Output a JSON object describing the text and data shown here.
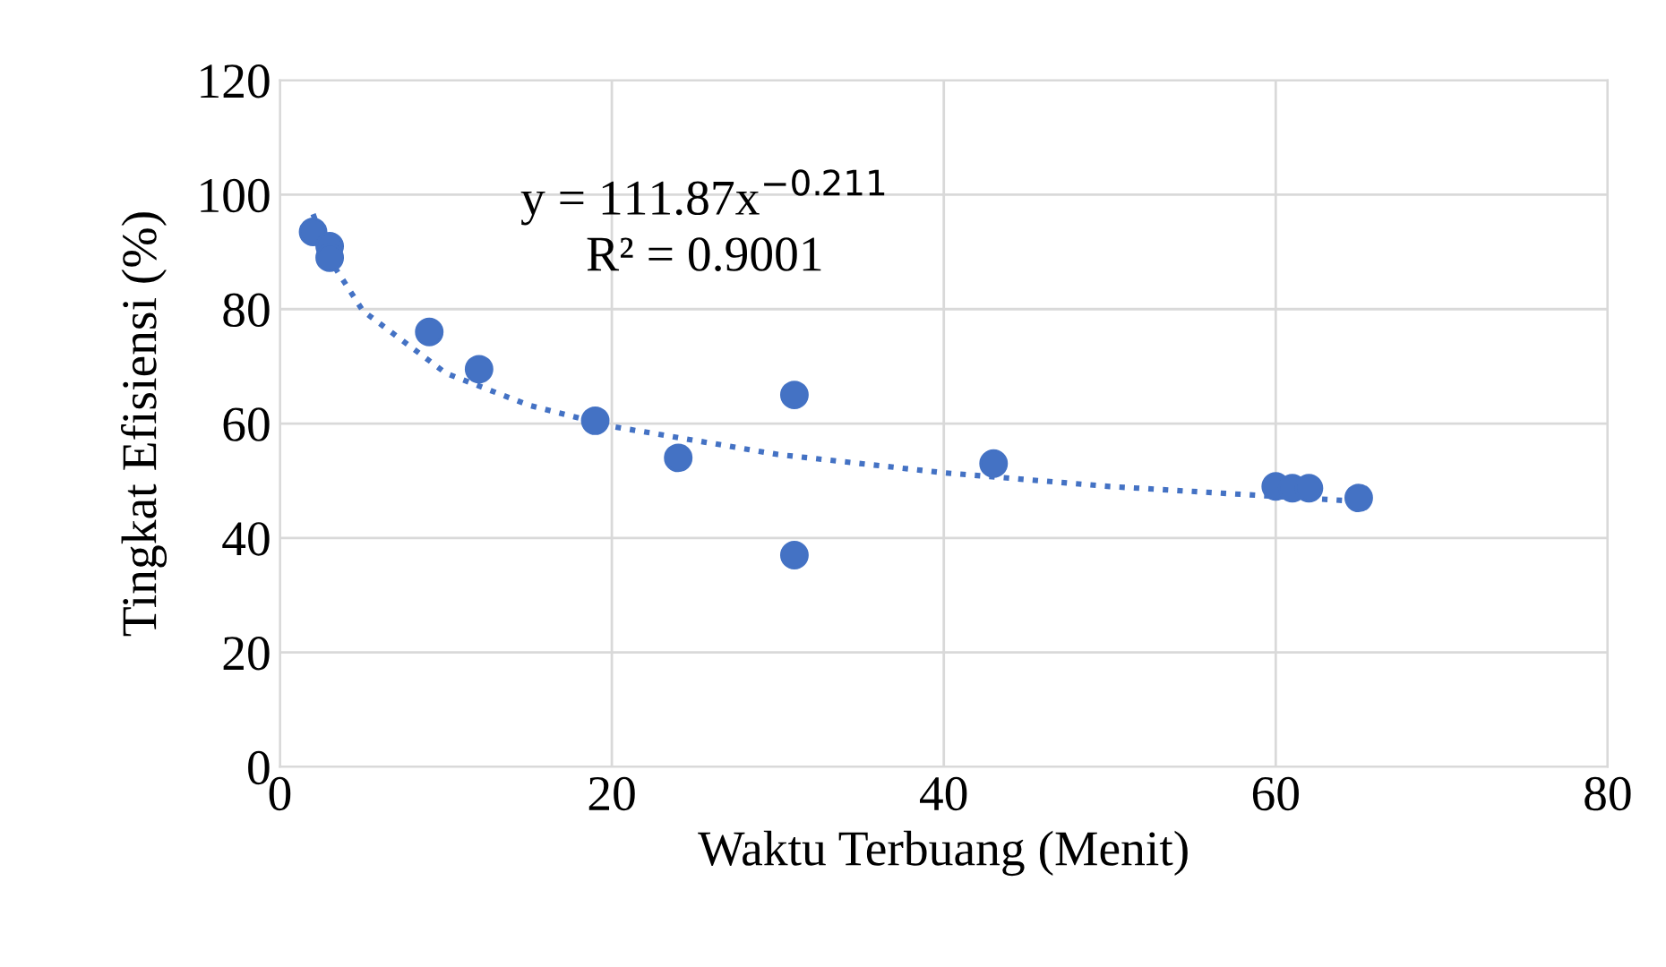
{
  "chart_data": {
    "type": "scatter",
    "xlabel": "Waktu Terbuang (Menit)",
    "ylabel": "Tingkat Efisiensi (%)",
    "xlim": [
      0,
      80
    ],
    "xticks": [
      0,
      20,
      40,
      60,
      80
    ],
    "ylim": [
      0,
      120
    ],
    "yticks": [
      0,
      20,
      40,
      60,
      80,
      100,
      120
    ],
    "grid": true,
    "marker": "circle",
    "annotations": [
      "y = 111.87x$^{−0.211}$\nR² = 0.9001"
    ],
    "series": [
      {
        "color": "#4472c4",
        "x": [
          2,
          3,
          3,
          9,
          12,
          19,
          24,
          31,
          31,
          43,
          60,
          61,
          62,
          65
        ],
        "values": [
          93.5,
          91,
          89,
          76,
          69.5,
          60.5,
          54,
          65,
          37,
          53,
          49,
          48.7,
          48.7,
          47
        ]
      },
      {
        "type": "line",
        "line_style": "dotted",
        "marker": "none",
        "color": "#4472c4",
        "x": [
          2,
          3,
          5,
          10,
          15,
          20,
          30,
          40,
          50,
          65
        ],
        "values": [
          96.6,
          88.7,
          79.7,
          68.8,
          63.2,
          59.5,
          54.6,
          51.4,
          49,
          46.4
        ]
      }
    ]
  }
}
